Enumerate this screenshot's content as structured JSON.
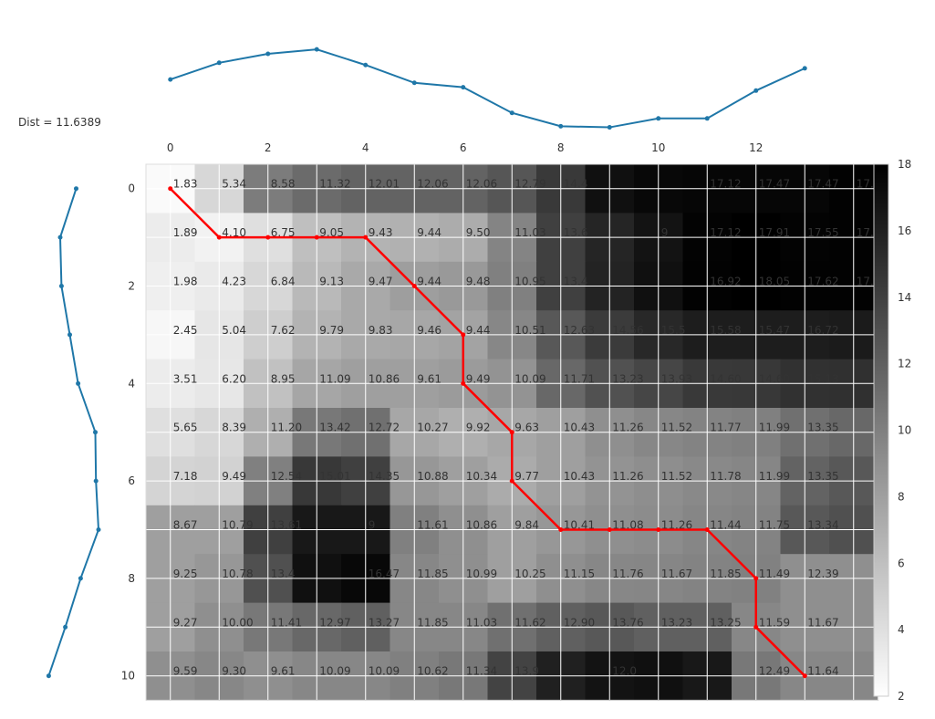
{
  "dist_text": "Dist = 11.6389",
  "chart_data": {
    "type": "heatmap",
    "title": "",
    "xlabel": "",
    "ylabel": "",
    "grid": true,
    "x_ticks": [
      0,
      2,
      4,
      6,
      8,
      10,
      12
    ],
    "y_ticks": [
      0,
      2,
      4,
      6,
      8,
      10
    ],
    "colorbar": {
      "min": 2,
      "max": 18,
      "ticks": [
        2,
        4,
        6,
        8,
        10,
        12,
        14,
        16,
        18
      ],
      "colormap": "gray_r"
    },
    "cell_labels": [
      [
        "1.83",
        "5.34",
        "8.58",
        "11.32",
        "12.01",
        "12.06",
        "12.06",
        "12.79",
        "14.4",
        "",
        "",
        "17.12",
        "17.47",
        "17.47",
        "17.77"
      ],
      [
        "1.89",
        "4.10",
        "6.75",
        "9.05",
        "9.43",
        "9.44",
        "9.50",
        "11.03",
        "13.6",
        "",
        "9",
        "17.12",
        "17.91",
        "17.55",
        "17.58"
      ],
      [
        "1.98",
        "4.23",
        "6.84",
        "9.13",
        "9.47",
        "9.44",
        "9.48",
        "10.95",
        "13.4",
        "",
        "",
        "16.92",
        "18.05",
        "17.62",
        "17.67"
      ],
      [
        "2.45",
        "5.04",
        "7.62",
        "9.79",
        "9.83",
        "9.46",
        "9.44",
        "10.51",
        "12.63",
        "14.56",
        "15.5",
        "15.58",
        "15.47",
        "16.72",
        ""
      ],
      [
        "3.51",
        "6.20",
        "8.95",
        "11.09",
        "10.86",
        "9.61",
        "9.49",
        "10.09",
        "11.71",
        "13.23",
        "13.93",
        "14.60",
        "14.60",
        "15.13",
        ""
      ],
      [
        "5.65",
        "8.39",
        "11.20",
        "13.42",
        "12.72",
        "10.27",
        "9.92",
        "9.63",
        "10.43",
        "11.26",
        "11.52",
        "11.77",
        "11.99",
        "13.35",
        ""
      ],
      [
        "7.18",
        "9.49",
        "12.54",
        "15.01",
        "14.35",
        "10.88",
        "10.34",
        "9.77",
        "10.43",
        "11.26",
        "11.52",
        "11.78",
        "11.99",
        "13.35",
        ""
      ],
      [
        "8.67",
        "10.79",
        "13.61",
        "",
        "9",
        "11.61",
        "10.86",
        "9.84",
        "10.41",
        "11.08",
        "11.26",
        "11.44",
        "11.75",
        "13.34",
        ""
      ],
      [
        "9.25",
        "10.78",
        "13.4",
        "",
        "16.47",
        "11.85",
        "10.99",
        "10.25",
        "11.15",
        "11.76",
        "11.67",
        "11.85",
        "11.49",
        "12.39",
        ""
      ],
      [
        "9.27",
        "10.00",
        "11.41",
        "12.97",
        "13.27",
        "11.85",
        "11.03",
        "11.62",
        "12.90",
        "13.76",
        "13.23",
        "13.25",
        "11.59",
        "11.67",
        ""
      ],
      [
        "9.59",
        "9.30",
        "9.61",
        "10.09",
        "10.09",
        "10.62",
        "11.34",
        "13.9",
        "",
        "12.0",
        "",
        "",
        "12.49",
        "11.64",
        ""
      ]
    ],
    "cell_values": [
      [
        2.3,
        4.5,
        10.2,
        11.3,
        11.8,
        11.8,
        11.8,
        12.6,
        14.4,
        17.0,
        17.5,
        17.6,
        17.6,
        17.6,
        17.9
      ],
      [
        3.2,
        2.8,
        4.0,
        6.0,
        6.8,
        6.9,
        7.2,
        9.7,
        14.0,
        15.7,
        16.8,
        17.8,
        18.0,
        17.8,
        17.9
      ],
      [
        3.0,
        3.3,
        4.5,
        6.4,
        7.4,
        8.1,
        8.4,
        10.0,
        14.0,
        15.8,
        17.0,
        17.9,
        18.0,
        17.9,
        17.9
      ],
      [
        2.5,
        3.6,
        5.1,
        6.8,
        7.4,
        7.5,
        7.8,
        9.5,
        12.5,
        14.3,
        15.5,
        16.2,
        16.2,
        16.2,
        16.3
      ],
      [
        3.2,
        3.5,
        5.9,
        7.6,
        8.0,
        8.0,
        8.3,
        8.8,
        11.5,
        12.9,
        13.6,
        14.4,
        14.5,
        14.9,
        15.0
      ],
      [
        4.0,
        4.5,
        7.0,
        10.5,
        11.0,
        7.5,
        7.0,
        7.5,
        8.0,
        9.0,
        9.5,
        9.8,
        10.0,
        11.0,
        11.5
      ],
      [
        4.7,
        4.8,
        10.0,
        14.5,
        14.0,
        8.5,
        8.0,
        7.3,
        8.0,
        8.8,
        9.1,
        9.4,
        9.6,
        11.8,
        12.5
      ],
      [
        8.0,
        8.0,
        14.0,
        16.5,
        16.5,
        10.0,
        9.0,
        8.0,
        8.5,
        9.0,
        9.2,
        9.6,
        9.8,
        12.5,
        13.0
      ],
      [
        8.0,
        8.5,
        13.0,
        17.0,
        17.5,
        9.5,
        9.0,
        8.0,
        9.0,
        9.5,
        9.6,
        9.8,
        9.9,
        9.0,
        9.0
      ],
      [
        8.0,
        9.0,
        10.5,
        11.5,
        12.0,
        9.5,
        9.5,
        11.0,
        12.0,
        12.5,
        12.0,
        12.0,
        9.5,
        9.0,
        9.0
      ],
      [
        9.0,
        9.5,
        9.0,
        9.5,
        9.5,
        10.0,
        10.5,
        13.8,
        16.0,
        16.8,
        17.0,
        16.5,
        10.5,
        9.5,
        9.5
      ]
    ],
    "warping_path": [
      [
        0,
        0
      ],
      [
        1,
        1
      ],
      [
        2,
        1
      ],
      [
        3,
        1
      ],
      [
        4,
        1
      ],
      [
        5,
        2
      ],
      [
        6,
        3
      ],
      [
        6,
        4
      ],
      [
        7,
        5
      ],
      [
        7,
        6
      ],
      [
        8,
        7
      ],
      [
        9,
        7
      ],
      [
        10,
        7
      ],
      [
        11,
        7
      ],
      [
        12,
        8
      ],
      [
        12,
        9
      ],
      [
        13,
        10
      ]
    ],
    "top_series": [
      0.45,
      0.6,
      0.68,
      0.72,
      0.58,
      0.42,
      0.38,
      0.15,
      0.03,
      0.02,
      0.1,
      0.1,
      0.35,
      0.55
    ],
    "left_series": [
      0.55,
      0.3,
      0.32,
      0.45,
      0.58,
      0.85,
      0.86,
      0.9,
      0.62,
      0.38,
      0.12
    ]
  }
}
